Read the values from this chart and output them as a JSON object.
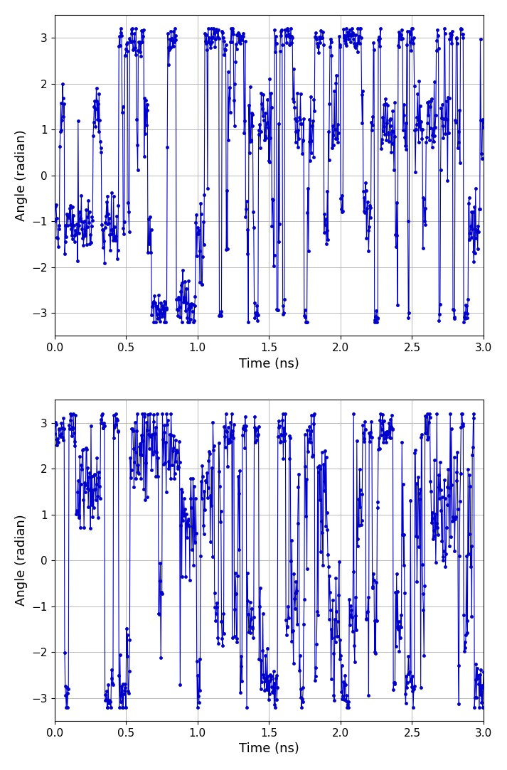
{
  "xlabel": "Time (ns)",
  "ylabel": "Angle (radian)",
  "xlim": [
    0.0,
    3.0
  ],
  "ylim": [
    -3.5,
    3.5
  ],
  "yticks": [
    -3,
    -2,
    -1,
    0,
    1,
    2,
    3
  ],
  "xticks": [
    0.0,
    0.5,
    1.0,
    1.5,
    2.0,
    2.5,
    3.0
  ],
  "line_color": "#0000CC",
  "marker": "o",
  "markersize": 3.5,
  "linewidth": 0.8,
  "n_points": 800,
  "figsize": [
    7.13,
    10.83
  ],
  "dpi": 100,
  "background_color": "#ffffff",
  "grid_color": "#b0b0b0",
  "grid_linewidth": 0.6,
  "label_fontsize": 13,
  "tick_fontsize": 11
}
